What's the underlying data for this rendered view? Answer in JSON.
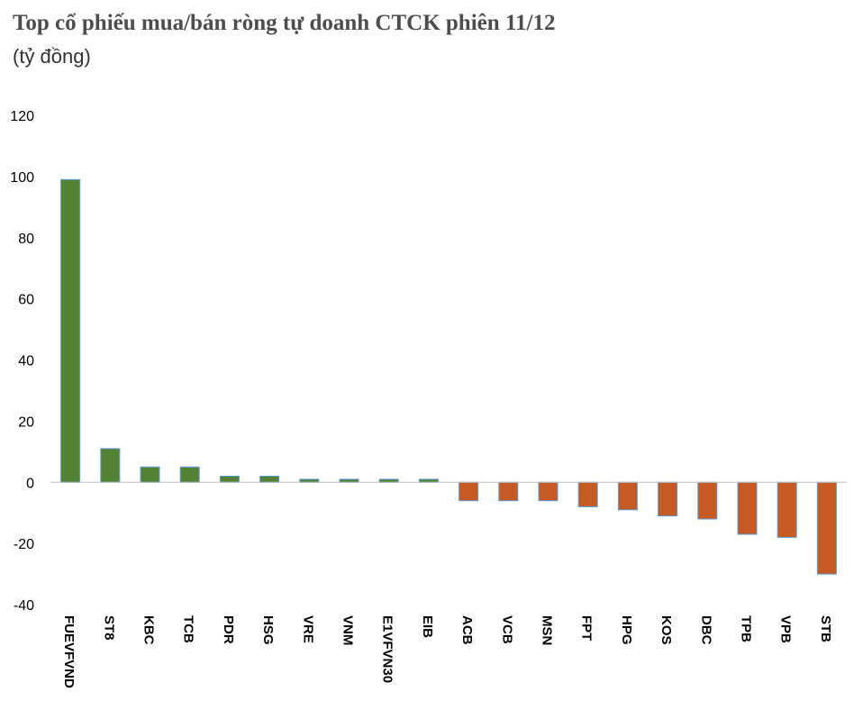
{
  "chart_data": {
    "type": "bar",
    "title": "Top cổ phiếu mua/bán ròng tự doanh CTCK phiên 11/12",
    "subtitle": "(tỷ đồng)",
    "xlabel": "",
    "ylabel": "",
    "ylim": [
      -40,
      120
    ],
    "yticks": [
      -40,
      -20,
      0,
      20,
      40,
      60,
      80,
      100,
      120
    ],
    "grid": false,
    "categories": [
      "FUEVFVND",
      "ST8",
      "KBC",
      "TCB",
      "PDR",
      "HSG",
      "VRE",
      "VNM",
      "E1VFVN30",
      "EIB",
      "ACB",
      "VCB",
      "MSN",
      "FPT",
      "HPG",
      "KOS",
      "DBC",
      "TPB",
      "VPB",
      "STB"
    ],
    "values": [
      99,
      11,
      5,
      5,
      2,
      2,
      1,
      1,
      1,
      1,
      -6,
      -6,
      -6,
      -8,
      -9,
      -11,
      -12,
      -17,
      -18,
      -30
    ],
    "colors": {
      "positive": "#548235",
      "negative": "#c55a22",
      "bar_outline": "#5b9bd5"
    }
  }
}
